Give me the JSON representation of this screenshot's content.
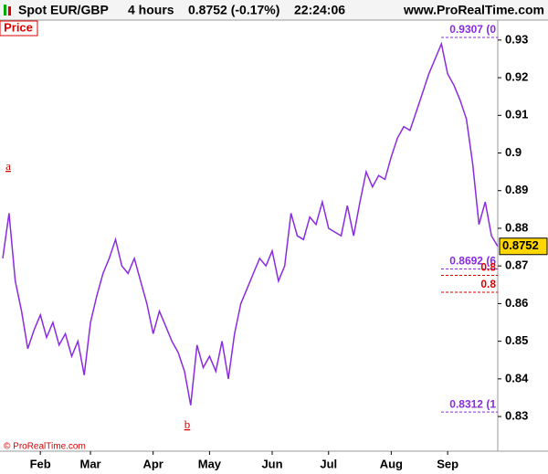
{
  "header": {
    "symbol": "Spot EUR/GBP",
    "timeframe": "4 hours",
    "quote": "0.8752 (-0.17%)",
    "time": "22:24:06",
    "site": "www.ProRealTime.com"
  },
  "chart_data": {
    "type": "line",
    "panel_label": "Price",
    "copyright": "© ProRealTime.com",
    "categories": [
      null,
      null,
      null,
      null,
      null,
      null,
      "Feb",
      null,
      null,
      null,
      null,
      null,
      null,
      null,
      "Mar",
      null,
      null,
      null,
      null,
      null,
      null,
      null,
      null,
      null,
      "Apr",
      null,
      null,
      null,
      null,
      null,
      null,
      null,
      null,
      "May",
      null,
      null,
      null,
      null,
      null,
      null,
      null,
      null,
      null,
      "Jun",
      null,
      null,
      null,
      null,
      null,
      null,
      null,
      null,
      "Jul",
      null,
      null,
      null,
      null,
      null,
      null,
      null,
      null,
      null,
      "Aug",
      null,
      null,
      null,
      null,
      null,
      null,
      null,
      null,
      "Sep",
      null,
      null,
      null,
      null,
      null,
      null,
      null,
      null
    ],
    "series": [
      {
        "name": "Spot EUR/GBP",
        "color": "#8a2be2",
        "values": [
          0.872,
          0.884,
          0.866,
          0.858,
          0.848,
          0.853,
          0.857,
          0.851,
          0.855,
          0.849,
          0.852,
          0.846,
          0.85,
          0.841,
          0.855,
          0.862,
          0.868,
          0.872,
          0.877,
          0.87,
          0.868,
          0.872,
          0.866,
          0.86,
          0.852,
          0.858,
          0.854,
          0.85,
          0.847,
          0.842,
          0.833,
          0.849,
          0.843,
          0.846,
          0.842,
          0.85,
          0.84,
          0.852,
          0.86,
          0.864,
          0.868,
          0.872,
          0.87,
          0.874,
          0.866,
          0.87,
          0.884,
          0.878,
          0.877,
          0.883,
          0.881,
          0.887,
          0.88,
          0.879,
          0.878,
          0.886,
          0.878,
          0.887,
          0.895,
          0.891,
          0.894,
          0.893,
          0.899,
          0.904,
          0.907,
          0.906,
          0.911,
          0.916,
          0.921,
          0.925,
          0.929,
          0.921,
          0.918,
          0.914,
          0.909,
          0.897,
          0.881,
          0.887,
          0.878,
          0.8752
        ]
      }
    ],
    "last_price": {
      "value": 0.8752,
      "label": "0.8752"
    },
    "levels": [
      {
        "value": 0.9307,
        "label": "0.9307 (0",
        "color": "#8a2be2"
      },
      {
        "value": 0.8692,
        "label": "0.8692 (6",
        "color": "#8a2be2"
      },
      {
        "value": 0.8675,
        "label": "0.8",
        "color": "#e00000"
      },
      {
        "value": 0.863,
        "label": "0.8",
        "color": "#e00000"
      },
      {
        "value": 0.8312,
        "label": "0.8312 (1",
        "color": "#8a2be2"
      }
    ],
    "annotations": [
      "a",
      "b"
    ],
    "ylim": [
      0.8208,
      0.9353
    ],
    "yticks": [
      0.83,
      0.84,
      0.85,
      0.86,
      0.87,
      0.88,
      0.89,
      0.9,
      0.91,
      0.92,
      0.93
    ]
  }
}
